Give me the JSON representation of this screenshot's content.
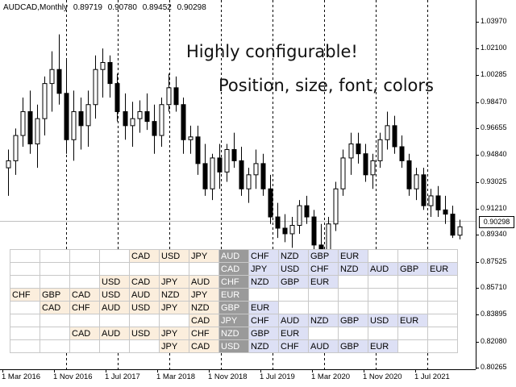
{
  "ticker": {
    "symbol": "AUDCAD,Monthly",
    "open": "0.89719",
    "high": "0.90780",
    "low": "0.89452",
    "close": "0.90298"
  },
  "promo": {
    "line1": "Highly configurable!",
    "line2": "Position, size, font, colors"
  },
  "price_axis": {
    "labels": [
      "1.03970",
      "1.02100",
      "1.00285",
      "0.98470",
      "0.96655",
      "0.94840",
      "0.93025",
      "0.91210",
      "0.89340",
      "0.87525",
      "0.85710",
      "0.83895",
      "0.82080",
      "0.80265"
    ],
    "current": "0.90298"
  },
  "time_axis": {
    "labels": [
      "1 Mar 2016",
      "1 Nov 2016",
      "1 Jul 2017",
      "1 Mar 2018",
      "1 Nov 2018",
      "1 Jul 2019",
      "1 Mar 2020",
      "1 Nov 2020",
      "1 Jul 2021"
    ]
  },
  "matrix": {
    "rows": [
      [
        {
          "t": "",
          "k": "e"
        },
        {
          "t": "",
          "k": "e"
        },
        {
          "t": "",
          "k": "e"
        },
        {
          "t": "",
          "k": "e"
        },
        {
          "t": "CAD",
          "k": "b"
        },
        {
          "t": "USD",
          "k": "b"
        },
        {
          "t": "JPY",
          "k": "b"
        },
        {
          "t": "AUD",
          "k": "p"
        },
        {
          "t": "CHF",
          "k": "q"
        },
        {
          "t": "NZD",
          "k": "q"
        },
        {
          "t": "GBP",
          "k": "q"
        },
        {
          "t": "EUR",
          "k": "q"
        },
        {
          "t": "",
          "k": "e"
        },
        {
          "t": "",
          "k": "e"
        },
        {
          "t": "",
          "k": "e"
        }
      ],
      [
        {
          "t": "",
          "k": "e"
        },
        {
          "t": "",
          "k": "e"
        },
        {
          "t": "",
          "k": "e"
        },
        {
          "t": "",
          "k": "e"
        },
        {
          "t": "",
          "k": "e"
        },
        {
          "t": "",
          "k": "e"
        },
        {
          "t": "",
          "k": "e"
        },
        {
          "t": "CAD",
          "k": "p"
        },
        {
          "t": "JPY",
          "k": "q"
        },
        {
          "t": "USD",
          "k": "q"
        },
        {
          "t": "CHF",
          "k": "q"
        },
        {
          "t": "NZD",
          "k": "q"
        },
        {
          "t": "AUD",
          "k": "q"
        },
        {
          "t": "GBP",
          "k": "q"
        },
        {
          "t": "EUR",
          "k": "q"
        }
      ],
      [
        {
          "t": "",
          "k": "e"
        },
        {
          "t": "",
          "k": "e"
        },
        {
          "t": "",
          "k": "e"
        },
        {
          "t": "USD",
          "k": "b"
        },
        {
          "t": "CAD",
          "k": "b"
        },
        {
          "t": "JPY",
          "k": "b"
        },
        {
          "t": "AUD",
          "k": "b"
        },
        {
          "t": "CHF",
          "k": "p"
        },
        {
          "t": "NZD",
          "k": "q"
        },
        {
          "t": "GBP",
          "k": "q"
        },
        {
          "t": "EUR",
          "k": "q"
        },
        {
          "t": "",
          "k": "e"
        },
        {
          "t": "",
          "k": "e"
        },
        {
          "t": "",
          "k": "e"
        },
        {
          "t": "",
          "k": "e"
        }
      ],
      [
        {
          "t": "CHF",
          "k": "b"
        },
        {
          "t": "GBP",
          "k": "b"
        },
        {
          "t": "CAD",
          "k": "b"
        },
        {
          "t": "USD",
          "k": "b"
        },
        {
          "t": "AUD",
          "k": "b"
        },
        {
          "t": "NZD",
          "k": "b"
        },
        {
          "t": "JPY",
          "k": "b"
        },
        {
          "t": "EUR",
          "k": "p"
        },
        {
          "t": "",
          "k": "e"
        },
        {
          "t": "",
          "k": "e"
        },
        {
          "t": "",
          "k": "e"
        },
        {
          "t": "",
          "k": "e"
        },
        {
          "t": "",
          "k": "e"
        },
        {
          "t": "",
          "k": "e"
        },
        {
          "t": "",
          "k": "e"
        }
      ],
      [
        {
          "t": "",
          "k": "e"
        },
        {
          "t": "CAD",
          "k": "b"
        },
        {
          "t": "CHF",
          "k": "b"
        },
        {
          "t": "AUD",
          "k": "b"
        },
        {
          "t": "USD",
          "k": "b"
        },
        {
          "t": "JPY",
          "k": "b"
        },
        {
          "t": "NZD",
          "k": "b"
        },
        {
          "t": "GBP",
          "k": "p"
        },
        {
          "t": "EUR",
          "k": "q"
        },
        {
          "t": "",
          "k": "e"
        },
        {
          "t": "",
          "k": "e"
        },
        {
          "t": "",
          "k": "e"
        },
        {
          "t": "",
          "k": "e"
        },
        {
          "t": "",
          "k": "e"
        },
        {
          "t": "",
          "k": "e"
        }
      ],
      [
        {
          "t": "",
          "k": "e"
        },
        {
          "t": "",
          "k": "e"
        },
        {
          "t": "",
          "k": "e"
        },
        {
          "t": "",
          "k": "e"
        },
        {
          "t": "",
          "k": "e"
        },
        {
          "t": "",
          "k": "e"
        },
        {
          "t": "CAD",
          "k": "b"
        },
        {
          "t": "JPY",
          "k": "p"
        },
        {
          "t": "CHF",
          "k": "q"
        },
        {
          "t": "AUD",
          "k": "q"
        },
        {
          "t": "NZD",
          "k": "q"
        },
        {
          "t": "GBP",
          "k": "q"
        },
        {
          "t": "USD",
          "k": "q"
        },
        {
          "t": "EUR",
          "k": "q"
        },
        {
          "t": "",
          "k": "e"
        }
      ],
      [
        {
          "t": "",
          "k": "e"
        },
        {
          "t": "",
          "k": "e"
        },
        {
          "t": "CAD",
          "k": "b"
        },
        {
          "t": "AUD",
          "k": "b"
        },
        {
          "t": "USD",
          "k": "b"
        },
        {
          "t": "JPY",
          "k": "b"
        },
        {
          "t": "CHF",
          "k": "b"
        },
        {
          "t": "NZD",
          "k": "p"
        },
        {
          "t": "GBP",
          "k": "q"
        },
        {
          "t": "EUR",
          "k": "q"
        },
        {
          "t": "",
          "k": "e"
        },
        {
          "t": "",
          "k": "e"
        },
        {
          "t": "",
          "k": "e"
        },
        {
          "t": "",
          "k": "e"
        },
        {
          "t": "",
          "k": "e"
        }
      ],
      [
        {
          "t": "",
          "k": "e"
        },
        {
          "t": "",
          "k": "e"
        },
        {
          "t": "",
          "k": "e"
        },
        {
          "t": "",
          "k": "e"
        },
        {
          "t": "",
          "k": "e"
        },
        {
          "t": "JPY",
          "k": "b"
        },
        {
          "t": "CAD",
          "k": "b"
        },
        {
          "t": "USD",
          "k": "p"
        },
        {
          "t": "NZD",
          "k": "q"
        },
        {
          "t": "CHF",
          "k": "q"
        },
        {
          "t": "AUD",
          "k": "q"
        },
        {
          "t": "GBP",
          "k": "q"
        },
        {
          "t": "EUR",
          "k": "q"
        },
        {
          "t": "",
          "k": "e"
        },
        {
          "t": "",
          "k": "e"
        }
      ]
    ]
  },
  "colors": {
    "bull": "#ffffff",
    "bear": "#000000",
    "grid": "#000000",
    "cell_base": "#fbeedd",
    "cell_pivot": "#9a9a9a",
    "cell_quote": "#dde0f5"
  },
  "chart_data": {
    "type": "candlestick",
    "y_range": [
      0.80265,
      1.049
    ],
    "candles": [
      [
        0.945,
        0.958,
        0.925,
        0.95
      ],
      [
        0.95,
        0.973,
        0.94,
        0.968
      ],
      [
        0.968,
        0.995,
        0.96,
        0.985
      ],
      [
        0.985,
        1.0,
        0.955,
        0.962
      ],
      [
        0.962,
        0.99,
        0.945,
        0.98
      ],
      [
        0.98,
        1.01,
        0.968,
        1.005
      ],
      [
        1.005,
        1.028,
        0.985,
        1.015
      ],
      [
        1.015,
        1.04,
        0.99,
        0.998
      ],
      [
        0.998,
        1.022,
        0.955,
        0.965
      ],
      [
        0.965,
        1.0,
        0.95,
        0.985
      ],
      [
        0.985,
        0.995,
        0.958,
        0.975
      ],
      [
        0.975,
        1.0,
        0.96,
        0.99
      ],
      [
        0.99,
        1.025,
        0.98,
        1.015
      ],
      [
        1.015,
        1.03,
        0.995,
        1.02
      ],
      [
        1.02,
        1.025,
        0.995,
        1.005
      ],
      [
        1.005,
        1.012,
        0.978,
        0.985
      ],
      [
        0.985,
        0.998,
        0.965,
        0.975
      ],
      [
        0.975,
        0.992,
        0.96,
        0.98
      ],
      [
        0.98,
        0.993,
        0.97,
        0.985
      ],
      [
        0.985,
        0.998,
        0.972,
        0.978
      ],
      [
        0.978,
        0.99,
        0.955,
        0.968
      ],
      [
        0.968,
        0.995,
        0.96,
        0.99
      ],
      [
        0.99,
        1.012,
        0.985,
        1.002
      ],
      [
        1.002,
        1.01,
        0.985,
        0.99
      ],
      [
        0.99,
        0.995,
        0.955,
        0.965
      ],
      [
        0.965,
        0.975,
        0.955,
        0.967
      ],
      [
        0.967,
        0.975,
        0.94,
        0.948
      ],
      [
        0.948,
        0.962,
        0.925,
        0.93
      ],
      [
        0.93,
        0.955,
        0.922,
        0.952
      ],
      [
        0.952,
        0.962,
        0.93,
        0.942
      ],
      [
        0.942,
        0.962,
        0.935,
        0.958
      ],
      [
        0.958,
        0.97,
        0.945,
        0.95
      ],
      [
        0.95,
        0.96,
        0.925,
        0.93
      ],
      [
        0.93,
        0.945,
        0.92,
        0.94
      ],
      [
        0.94,
        0.958,
        0.93,
        0.948
      ],
      [
        0.948,
        0.955,
        0.925,
        0.93
      ],
      [
        0.93,
        0.94,
        0.905,
        0.91
      ],
      [
        0.91,
        0.92,
        0.895,
        0.902
      ],
      [
        0.902,
        0.912,
        0.892,
        0.898
      ],
      [
        0.898,
        0.91,
        0.888,
        0.904
      ],
      [
        0.904,
        0.922,
        0.898,
        0.918
      ],
      [
        0.918,
        0.925,
        0.905,
        0.91
      ],
      [
        0.91,
        0.915,
        0.885,
        0.89
      ],
      [
        0.89,
        0.905,
        0.87,
        0.88
      ],
      [
        0.88,
        0.91,
        0.82,
        0.905
      ],
      [
        0.905,
        0.935,
        0.9,
        0.93
      ],
      [
        0.93,
        0.958,
        0.925,
        0.952
      ],
      [
        0.952,
        0.97,
        0.94,
        0.962
      ],
      [
        0.962,
        0.97,
        0.948,
        0.955
      ],
      [
        0.955,
        0.962,
        0.935,
        0.94
      ],
      [
        0.94,
        0.955,
        0.93,
        0.95
      ],
      [
        0.95,
        0.97,
        0.945,
        0.965
      ],
      [
        0.965,
        0.985,
        0.958,
        0.975
      ],
      [
        0.975,
        0.982,
        0.955,
        0.96
      ],
      [
        0.96,
        0.968,
        0.945,
        0.95
      ],
      [
        0.95,
        0.955,
        0.925,
        0.93
      ],
      [
        0.93,
        0.945,
        0.922,
        0.94
      ],
      [
        0.94,
        0.945,
        0.915,
        0.918
      ],
      [
        0.918,
        0.93,
        0.91,
        0.925
      ],
      [
        0.925,
        0.932,
        0.91,
        0.915
      ],
      [
        0.915,
        0.925,
        0.905,
        0.912
      ],
      [
        0.912,
        0.918,
        0.895,
        0.897
      ],
      [
        0.897,
        0.908,
        0.894,
        0.903
      ]
    ]
  }
}
